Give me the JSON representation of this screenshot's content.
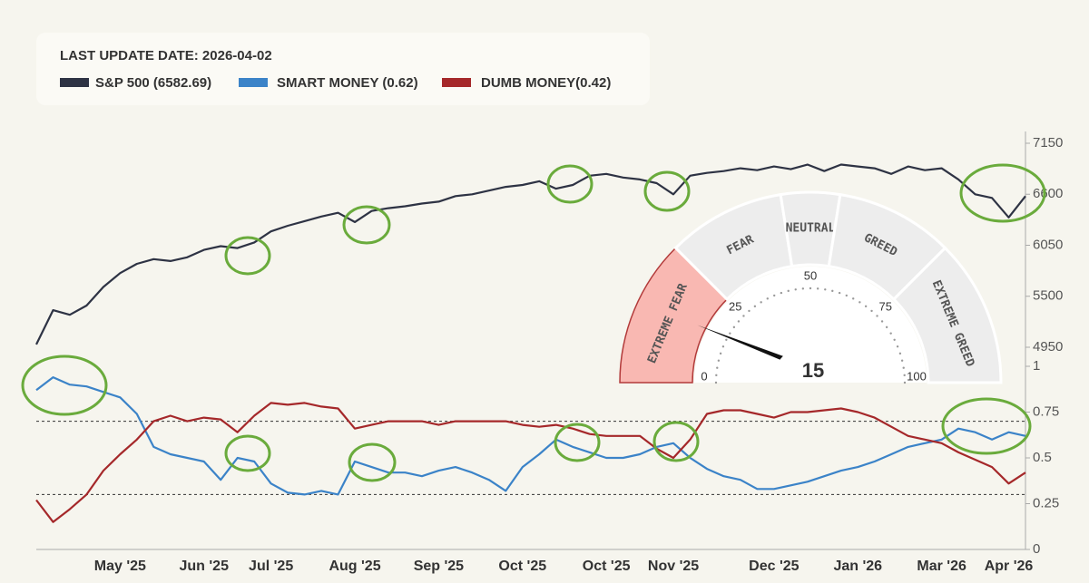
{
  "chart_data": [
    {
      "type": "line",
      "title": "LAST UPDATE DATE: 2026-04-02",
      "categories": [
        null,
        null,
        null,
        null,
        null,
        "May '25",
        null,
        null,
        null,
        null,
        "Jun '25",
        null,
        null,
        null,
        "Jul '25",
        null,
        null,
        null,
        null,
        "Aug '25",
        null,
        null,
        null,
        null,
        "Sep '25",
        null,
        null,
        null,
        null,
        "Oct '25",
        null,
        null,
        null,
        null,
        "Oct '25",
        null,
        null,
        null,
        "Nov '25",
        null,
        null,
        null,
        null,
        null,
        "Dec '25",
        null,
        null,
        null,
        null,
        "Jan '26",
        null,
        null,
        null,
        null,
        "Mar '26",
        null,
        null,
        null,
        "Apr '26",
        null
      ],
      "series": [
        {
          "name": "S&P 500 (6582.69)",
          "color": "#2e3344",
          "values": [
            4980,
            5350,
            5300,
            5400,
            5600,
            5750,
            5850,
            5900,
            5880,
            5920,
            6000,
            6040,
            6020,
            6080,
            6200,
            6260,
            6310,
            6360,
            6400,
            6300,
            6420,
            6450,
            6470,
            6500,
            6520,
            6580,
            6600,
            6640,
            6680,
            6700,
            6740,
            6660,
            6700,
            6800,
            6820,
            6780,
            6760,
            6720,
            6600,
            6800,
            6830,
            6850,
            6880,
            6860,
            6900,
            6870,
            6920,
            6850,
            6920,
            6900,
            6880,
            6820,
            6900,
            6860,
            6880,
            6760,
            6600,
            6560,
            6350,
            6580
          ]
        },
        {
          "name": "SMART MONEY (0.62)",
          "color": "#3b83c8",
          "axis": "y2",
          "values": [
            0.87,
            0.94,
            0.9,
            0.89,
            0.86,
            0.83,
            0.74,
            0.56,
            0.52,
            0.5,
            0.48,
            0.38,
            0.5,
            0.48,
            0.36,
            0.31,
            0.3,
            0.32,
            0.3,
            0.48,
            0.45,
            0.42,
            0.42,
            0.4,
            0.43,
            0.45,
            0.42,
            0.38,
            0.32,
            0.45,
            0.52,
            0.6,
            0.56,
            0.53,
            0.5,
            0.5,
            0.52,
            0.56,
            0.58,
            0.5,
            0.44,
            0.4,
            0.38,
            0.33,
            0.33,
            0.35,
            0.37,
            0.4,
            0.43,
            0.45,
            0.48,
            0.52,
            0.56,
            0.58,
            0.6,
            0.66,
            0.64,
            0.6,
            0.64,
            0.62
          ]
        },
        {
          "name": "DUMB MONEY(0.42)",
          "color": "#a5282a",
          "axis": "y2",
          "values": [
            0.27,
            0.15,
            0.22,
            0.3,
            0.43,
            0.52,
            0.6,
            0.7,
            0.73,
            0.7,
            0.72,
            0.71,
            0.64,
            0.73,
            0.8,
            0.79,
            0.8,
            0.78,
            0.77,
            0.66,
            0.68,
            0.7,
            0.7,
            0.7,
            0.68,
            0.7,
            0.7,
            0.7,
            0.7,
            0.68,
            0.67,
            0.68,
            0.66,
            0.63,
            0.62,
            0.62,
            0.62,
            0.55,
            0.5,
            0.6,
            0.74,
            0.76,
            0.76,
            0.74,
            0.72,
            0.75,
            0.75,
            0.76,
            0.77,
            0.75,
            0.72,
            0.67,
            0.62,
            0.6,
            0.58,
            0.53,
            0.49,
            0.45,
            0.36,
            0.42
          ]
        }
      ],
      "ylim": [
        4950,
        7150
      ],
      "yticks": [
        4950,
        5500,
        6050,
        6600,
        7150
      ],
      "y2lim": [
        0,
        1
      ],
      "y2ticks": [
        0,
        0.25,
        0.5,
        0.75,
        1
      ],
      "reference_lines": [
        0.7,
        0.3
      ]
    },
    {
      "type": "gauge",
      "value": 15,
      "range": [
        0,
        100
      ],
      "ticks": [
        0,
        25,
        50,
        75,
        100
      ],
      "bands": [
        {
          "label": "EXTREME FEAR",
          "from": 0,
          "to": 25,
          "color": "#f9b8b2"
        },
        {
          "label": "FEAR",
          "from": 25,
          "to": 45,
          "color": "#ededed"
        },
        {
          "label": "NEUTRAL",
          "from": 45,
          "to": 55,
          "color": "#ededed"
        },
        {
          "label": "GREED",
          "from": 55,
          "to": 75,
          "color": "#ededed"
        },
        {
          "label": "EXTREME GREED",
          "from": 75,
          "to": 100,
          "color": "#ededed"
        }
      ]
    }
  ]
}
